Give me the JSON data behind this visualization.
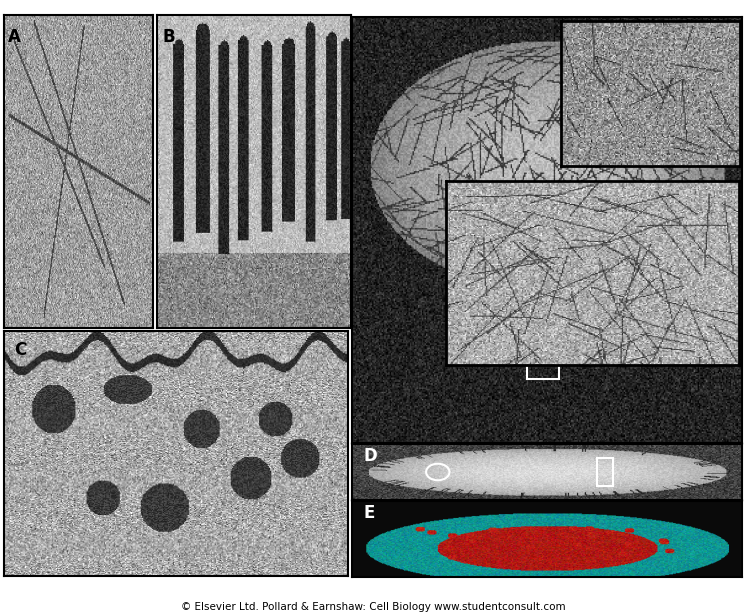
{
  "footer": "© Elsevier Ltd. Pollard & Earnshaw: Cell Biology www.studentconsult.com",
  "label_A": "A",
  "label_B": "B",
  "label_C": "C",
  "label_D": "D",
  "label_E": "E",
  "fig_width": 7.46,
  "fig_height": 6.13
}
